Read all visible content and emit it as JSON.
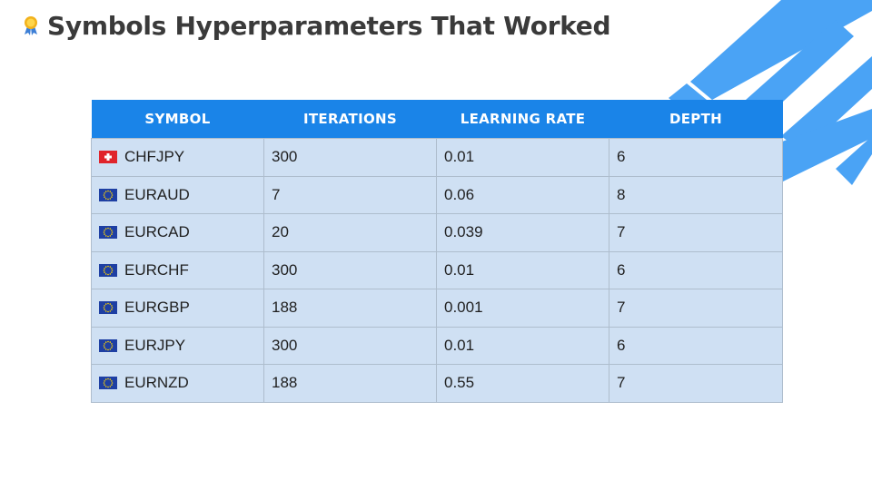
{
  "title": "Symbols Hyperparameters That Worked",
  "icons": {
    "title": "medal-icon",
    "ch_flag": "switzerland-flag-icon",
    "eu_flag": "eu-flag-icon"
  },
  "colors": {
    "header": "#1a84e8",
    "cell": "#cfe0f3",
    "stripes": "#4aa3f5",
    "title": "#3a3a3a"
  },
  "table": {
    "headers": [
      "SYMBOL",
      "ITERATIONS",
      "LEARNING RATE",
      "DEPTH"
    ],
    "rows": [
      {
        "flag": "ch",
        "symbol": "CHFJPY",
        "iterations": "300",
        "learning_rate": "0.01",
        "depth": "6"
      },
      {
        "flag": "eu",
        "symbol": "EURAUD",
        "iterations": "7",
        "learning_rate": "0.06",
        "depth": "8"
      },
      {
        "flag": "eu",
        "symbol": "EURCAD",
        "iterations": "20",
        "learning_rate": "0.039",
        "depth": "7"
      },
      {
        "flag": "eu",
        "symbol": "EURCHF",
        "iterations": "300",
        "learning_rate": "0.01",
        "depth": "6"
      },
      {
        "flag": "eu",
        "symbol": "EURGBP",
        "iterations": "188",
        "learning_rate": "0.001",
        "depth": "7"
      },
      {
        "flag": "eu",
        "symbol": "EURJPY",
        "iterations": "300",
        "learning_rate": "0.01",
        "depth": "6"
      },
      {
        "flag": "eu",
        "symbol": "EURNZD",
        "iterations": "188",
        "learning_rate": "0.55",
        "depth": "7"
      }
    ]
  }
}
